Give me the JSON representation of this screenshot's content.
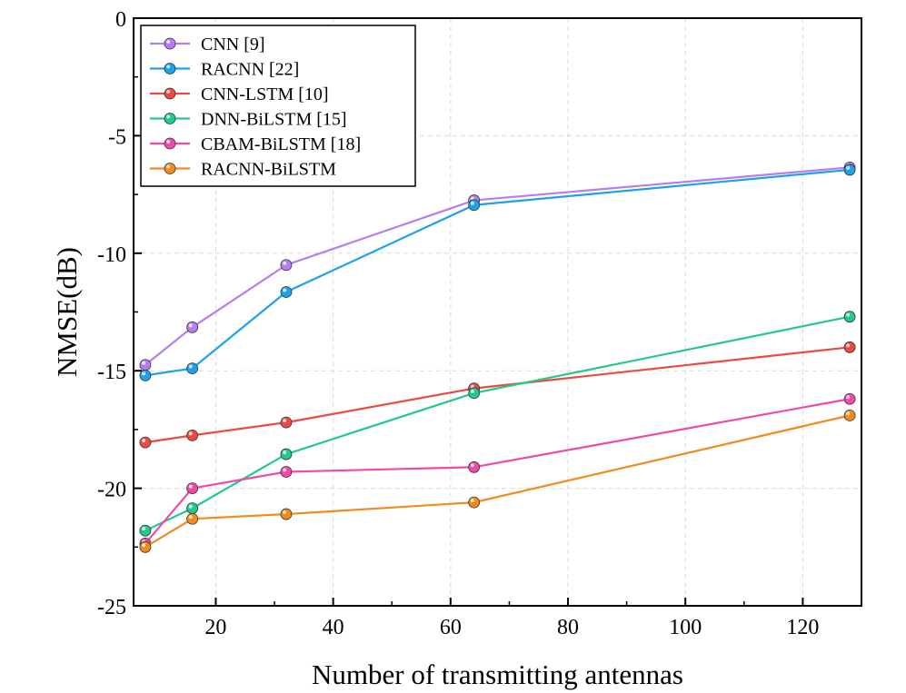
{
  "chart_data": {
    "type": "line",
    "xlabel": "Number of transmitting antennas",
    "ylabel": "NMSE(dB)",
    "xlim": [
      6,
      130
    ],
    "ylim": [
      -25,
      0
    ],
    "xticks": [
      20,
      40,
      60,
      80,
      100,
      120
    ],
    "yticks": [
      0,
      -5,
      -10,
      -15,
      -20,
      -25
    ],
    "grid": true,
    "legend_position": "top-left",
    "x": [
      8,
      16,
      32,
      64,
      128
    ],
    "series": [
      {
        "name": "CNN [9]",
        "color": "#b57ef0",
        "values": [
          -14.75,
          -13.15,
          -10.5,
          -7.75,
          -6.35
        ]
      },
      {
        "name": "RACNN [22]",
        "color": "#1ea1ea",
        "values": [
          -15.2,
          -14.9,
          -11.65,
          -7.95,
          -6.45
        ]
      },
      {
        "name": "CNN-LSTM [10]",
        "color": "#ea4a43",
        "values": [
          -18.05,
          -17.75,
          -17.2,
          -15.75,
          -14.0
        ]
      },
      {
        "name": "DNN-BiLSTM [15]",
        "color": "#22c98c",
        "values": [
          -21.8,
          -20.85,
          -18.55,
          -15.95,
          -12.7
        ]
      },
      {
        "name": "CBAM-BiLSTM [18]",
        "color": "#ef4aa9",
        "values": [
          -22.35,
          -20.0,
          -19.3,
          -19.1,
          -16.2
        ]
      },
      {
        "name": "RACNN-BiLSTM",
        "color": "#f28a1c",
        "values": [
          -22.5,
          -21.3,
          -21.1,
          -20.6,
          -16.9
        ]
      }
    ]
  }
}
